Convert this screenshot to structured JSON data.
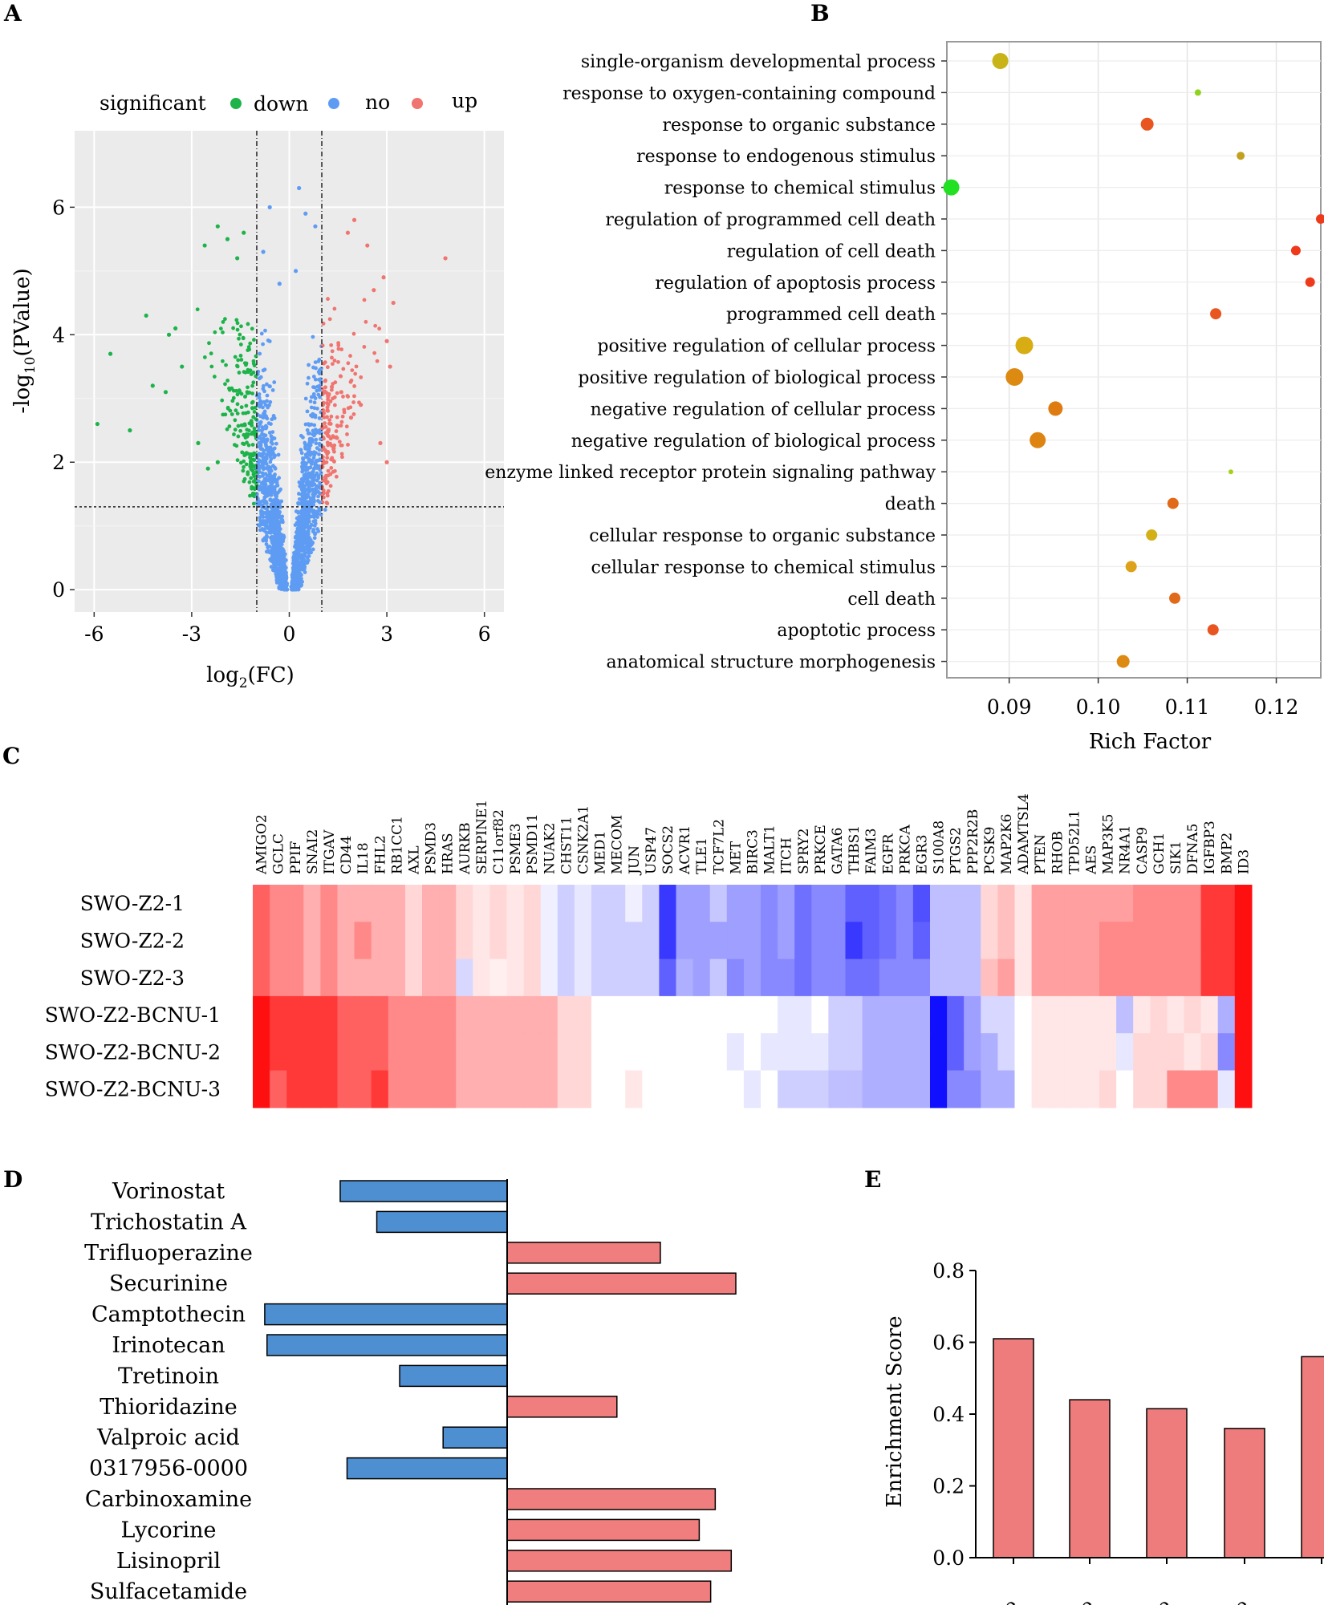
{
  "panel_letters": {
    "a": "A",
    "b": "B",
    "c": "C",
    "d": "D",
    "e": "E"
  },
  "chart_data": [
    {
      "panel": "A",
      "type": "scatter",
      "title": "",
      "xlabel": "log2(FC)",
      "xlabel_parts": {
        "base": "log",
        "sub": "2",
        "rest": "(FC)"
      },
      "ylabel": "-log10(PValue)",
      "ylabel_parts": {
        "base": "-log",
        "sub": "10",
        "rest": "(PValue)"
      },
      "xlim": [
        -6.6,
        6.6
      ],
      "ylim": [
        -0.35,
        7.2
      ],
      "xticks": [
        -6,
        -3,
        0,
        3,
        6
      ],
      "xtick_labels": [
        "-6",
        "-3",
        "0",
        "3",
        "6"
      ],
      "yticks": [
        0,
        2,
        4,
        6
      ],
      "ytick_labels": [
        "0",
        "2",
        "4",
        "6"
      ],
      "fc_thresholds": [
        -1,
        1
      ],
      "p_threshold": 1.3,
      "legend": {
        "title": "significant",
        "items": [
          {
            "label": "down",
            "color": "#1db34a"
          },
          {
            "label": "no",
            "color": "#5e9cf4"
          },
          {
            "label": "up",
            "color": "#f07470"
          }
        ]
      },
      "series": [
        {
          "name": "down",
          "color": "#1db34a",
          "points": [
            [
              -5.9,
              2.6
            ],
            [
              -5.5,
              3.7
            ],
            [
              -4.4,
              4.3
            ],
            [
              -3.7,
              4.0
            ],
            [
              -3.5,
              4.1
            ],
            [
              -2.6,
              5.4
            ],
            [
              -2.2,
              5.7
            ],
            [
              -1.9,
              5.5
            ],
            [
              -1.6,
              5.2
            ],
            [
              -1.4,
              5.6
            ],
            [
              -3.3,
              3.5
            ],
            [
              -3.8,
              3.1
            ],
            [
              -4.2,
              3.2
            ],
            [
              -4.9,
              2.5
            ],
            [
              -2.8,
              2.3
            ],
            [
              -2.5,
              1.9
            ],
            [
              -2.2,
              2.0
            ]
          ]
        },
        {
          "name": "no",
          "color": "#5e9cf4",
          "points": [
            [
              -0.6,
              6.0
            ],
            [
              0.3,
              6.3
            ],
            [
              0.5,
              5.9
            ],
            [
              -0.8,
              5.3
            ],
            [
              0.8,
              5.7
            ],
            [
              -0.3,
              4.8
            ],
            [
              0.2,
              5.0
            ]
          ]
        },
        {
          "name": "up",
          "color": "#f07470",
          "points": [
            [
              4.8,
              5.2
            ],
            [
              2.0,
              5.8
            ],
            [
              1.8,
              5.6
            ],
            [
              2.4,
              5.4
            ],
            [
              2.9,
              4.9
            ],
            [
              3.2,
              4.5
            ],
            [
              2.6,
              4.7
            ],
            [
              3.0,
              3.9
            ],
            [
              3.1,
              3.5
            ],
            [
              2.2,
              2.9
            ],
            [
              2.8,
              2.3
            ],
            [
              3.0,
              2.0
            ],
            [
              1.6,
              3.1
            ],
            [
              1.9,
              2.7
            ]
          ]
        }
      ]
    },
    {
      "panel": "B",
      "type": "scatter",
      "xlabel": "Rich Factor",
      "xlim": [
        0.083,
        0.125
      ],
      "xticks": [
        0.09,
        0.1,
        0.11,
        0.12
      ],
      "xtick_labels": [
        "0.09",
        "0.10",
        "0.11",
        "0.12"
      ],
      "categories": [
        "single-organism developmental process",
        "response to oxygen-containing compound",
        "response to organic substance",
        "response to endogenous stimulus",
        "response to chemical stimulus",
        "regulation of programmed cell death",
        "regulation of cell death",
        "regulation of apoptosis process",
        "programmed cell death",
        "positive regulation of cellular process",
        "positive regulation of biological process",
        "negative regulation of cellular process",
        "negative regulation of biological process",
        "enzyme linked receptor protein signaling pathway",
        "death",
        "cellular response to organic substance",
        "cellular response to chemical stimulus",
        "cell death",
        "apoptotic process",
        "anatomical structure morphogenesis"
      ],
      "values": [
        0.089,
        0.1112,
        0.1055,
        0.116,
        0.0835,
        0.125,
        0.1222,
        0.1238,
        0.1132,
        0.0917,
        0.0906,
        0.0952,
        0.0932,
        0.1149,
        0.1084,
        0.106,
        0.1037,
        0.1086,
        0.1129,
        0.1028
      ],
      "sizes": [
        10,
        4,
        8,
        5,
        10,
        6,
        6,
        6,
        7,
        11,
        11,
        9,
        10,
        3,
        7,
        7,
        7,
        7,
        7,
        8
      ],
      "colors": [
        "#c8b416",
        "#8ed31d",
        "#e85520",
        "#c2a020",
        "#22e022",
        "#ee3a1a",
        "#ee3a1a",
        "#ee3a1a",
        "#e85520",
        "#d8ad14",
        "#dd8a12",
        "#de7c12",
        "#de8412",
        "#a4d21a",
        "#e06a1a",
        "#d4b018",
        "#dda21a",
        "#e06a1a",
        "#e85520",
        "#dd8a12"
      ]
    },
    {
      "panel": "C",
      "type": "heatmap",
      "rows": [
        "SWO-Z2-1",
        "SWO-Z2-2",
        "SWO-Z2-3",
        "SWO-Z2-BCNU-1",
        "SWO-Z2-BCNU-2",
        "SWO-Z2-BCNU-3"
      ],
      "columns": [
        "AMIGO2",
        "GCLC",
        "PPIF",
        "SNAI2",
        "ITGAV",
        "CD44",
        "IL18",
        "FHL2",
        "RB1CC1",
        "AXL",
        "PSMD3",
        "HRAS",
        "AURKB",
        "SERPINE1",
        "C11orf82",
        "PSME3",
        "PSMD11",
        "NUAK2",
        "CHST11",
        "CSNK2A1",
        "MED1",
        "MECOM",
        "JUN",
        "USP47",
        "SOCS2",
        "ACVR1",
        "TLE1",
        "TCF7L2",
        "MET",
        "BIRC3",
        "MALT1",
        "ITCH",
        "SPRY2",
        "PRKCE",
        "GATA6",
        "THBS1",
        "FAIM3",
        "EGFR",
        "PRKCA",
        "EGR3",
        "S100A8",
        "PTGS2",
        "PPP2R2B",
        "PCSK9",
        "MAP2K6",
        "ADAMTSL4",
        "PTEN",
        "RHOB",
        "TPD52L1",
        "AES",
        "MAP3K5",
        "NR4A1",
        "CASP9",
        "GCH1",
        "SIK1",
        "DFNA5",
        "IGFBP3",
        "BMP2",
        "ID3"
      ],
      "value_range": [
        -3,
        3
      ],
      "colors": {
        "low": "#1010ff",
        "mid": "#ffffff",
        "high": "#ff1010"
      },
      "values": [
        [
          2,
          1.5,
          1.5,
          1,
          1.5,
          1,
          1,
          1,
          1,
          0.5,
          1,
          1,
          0.5,
          0.3,
          0.5,
          0.3,
          0.5,
          -0.2,
          -0.6,
          -0.3,
          -0.6,
          -0.6,
          -0.2,
          -0.6,
          -2.5,
          -1.2,
          -1.2,
          -0.7,
          -1.2,
          -1.2,
          -1.5,
          -1.2,
          -1.8,
          -1.5,
          -1.5,
          -2,
          -2,
          -1.8,
          -1.5,
          -2.2,
          -0.8,
          -0.8,
          -0.8,
          0.5,
          0.8,
          0.3,
          1.2,
          1.2,
          1.2,
          1.2,
          1.2,
          1.2,
          1.5,
          1.5,
          1.5,
          1.5,
          2.5,
          2.5,
          3
        ],
        [
          2,
          1.5,
          1.5,
          1,
          1.5,
          1,
          1.5,
          1,
          1,
          0.5,
          1,
          1,
          0.5,
          0.3,
          0.5,
          0.3,
          0.5,
          -0.2,
          -0.6,
          -0.3,
          -0.6,
          -0.6,
          -0.6,
          -0.6,
          -2.5,
          -1.2,
          -1.2,
          -1.2,
          -1.2,
          -1.2,
          -1.5,
          -1.2,
          -1.8,
          -1.5,
          -1.5,
          -2.5,
          -2,
          -1.8,
          -1.5,
          -2,
          -0.8,
          -0.8,
          -0.8,
          0.5,
          0.8,
          0.3,
          1.2,
          1.2,
          1.2,
          1.2,
          1.5,
          1.5,
          1.5,
          1.5,
          1.5,
          1.5,
          2.5,
          2.5,
          3
        ],
        [
          2,
          1.5,
          1.5,
          1,
          1.5,
          1,
          1,
          1,
          1,
          0.5,
          1,
          1,
          -0.5,
          0.3,
          0.2,
          0.3,
          0.5,
          -0.2,
          -0.6,
          -0.3,
          -0.6,
          -0.6,
          -0.6,
          -0.6,
          -2,
          -1,
          -1.2,
          -0.7,
          -1.5,
          -1.2,
          -1.5,
          -1.5,
          -1.8,
          -1.5,
          -1.5,
          -1.8,
          -1.8,
          -1.5,
          -1.5,
          -1.5,
          -0.8,
          -0.8,
          -0.8,
          0.8,
          1.2,
          0.3,
          1.2,
          1.2,
          1.2,
          1.2,
          1.5,
          1.5,
          1.5,
          1.5,
          1.5,
          1.5,
          2.5,
          2.5,
          3
        ],
        [
          3,
          2.5,
          2.5,
          2.5,
          2.5,
          2,
          2,
          2,
          1.5,
          1.5,
          1.5,
          1.5,
          1,
          1,
          1,
          1,
          1,
          1,
          0.5,
          0.5,
          0,
          0,
          0,
          0,
          0,
          0,
          0,
          0,
          0,
          0,
          0,
          -0.3,
          -0.3,
          0,
          -0.6,
          -0.6,
          -1,
          -1,
          -1,
          -1,
          -3,
          -2,
          -1.2,
          -0.5,
          -0.5,
          0,
          0.3,
          0.3,
          0.3,
          0.3,
          0.3,
          -0.8,
          0.3,
          0.5,
          0.3,
          0.5,
          0.3,
          -1,
          3
        ],
        [
          3,
          2.5,
          2.5,
          2.5,
          2.5,
          2,
          2,
          2,
          1.5,
          1.5,
          1.5,
          1.5,
          1,
          1,
          1,
          1,
          1,
          1,
          0.5,
          0.5,
          0,
          0,
          0,
          0,
          0,
          0,
          0,
          0,
          -0.3,
          0,
          -0.3,
          -0.3,
          -0.3,
          -0.3,
          -0.6,
          -0.6,
          -1,
          -1,
          -1,
          -1,
          -3,
          -2,
          -1.2,
          -1,
          -0.5,
          0,
          0.3,
          0.3,
          0.3,
          0.3,
          0.3,
          -0.3,
          0.5,
          0.5,
          0.5,
          0.3,
          0.5,
          -1.5,
          3
        ],
        [
          3,
          2,
          2.5,
          2.5,
          2.5,
          2,
          2,
          2.5,
          1.5,
          1.5,
          1.5,
          1.5,
          1,
          1,
          1,
          1,
          1,
          1,
          0.5,
          0.5,
          0,
          0,
          0.3,
          0,
          0,
          0,
          0,
          0,
          0,
          -0.3,
          0,
          -0.6,
          -0.6,
          -0.6,
          -0.8,
          -0.8,
          -1,
          -1,
          -1,
          -1,
          -3,
          -1.5,
          -1.5,
          -1,
          -1,
          0,
          0.3,
          0.3,
          0.3,
          0.3,
          0.5,
          0,
          0.5,
          0.5,
          1.5,
          1.5,
          1.5,
          -0.3,
          3
        ]
      ]
    },
    {
      "panel": "D",
      "type": "bar",
      "orientation": "horizontal",
      "categories": [
        "Vorinostat",
        "Trichostatin A",
        "Trifluoperazine",
        "Securinine",
        "Camptothecin",
        "Irinotecan",
        "Tretinoin",
        "Thioridazine",
        "Valproic acid",
        "0317956-0000",
        "Carbinoxamine",
        "Lycorine",
        "Lisinopril",
        "Sulfacetamide"
      ],
      "values": [
        -0.73,
        -0.57,
        0.67,
        1.0,
        -1.06,
        -1.05,
        -0.47,
        0.48,
        -0.28,
        -0.7,
        0.91,
        0.84,
        0.98,
        0.89
      ],
      "xlim": [
        -2.2,
        1.45
      ],
      "colors": {
        "negative": "#4d8fd1",
        "positive": "#f07e7e"
      }
    },
    {
      "panel": "E",
      "type": "bar",
      "ylabel": "Enrichment Score",
      "ylim": [
        0,
        0.8
      ],
      "yticks": [
        0.0,
        0.2,
        0.4,
        0.6,
        0.8
      ],
      "ytick_labels": [
        "0.0",
        "0.2",
        "0.4",
        "0.6",
        "0.8"
      ],
      "categories": [
        "ine",
        "ine",
        "ine",
        "ine",
        ""
      ],
      "values": [
        0.61,
        0.44,
        0.415,
        0.36,
        0.56
      ],
      "color": "#ee7c7c"
    }
  ]
}
